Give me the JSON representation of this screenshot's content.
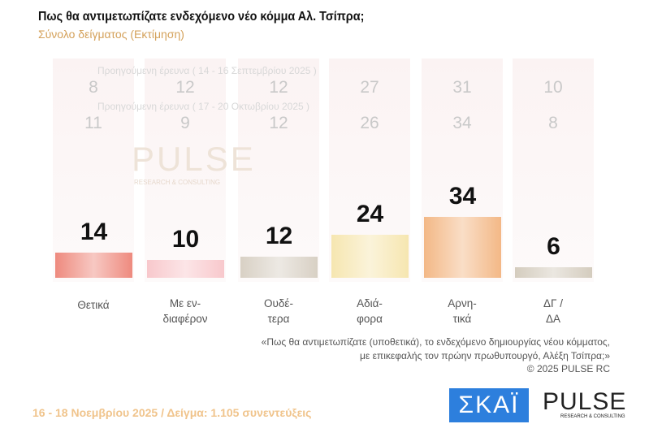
{
  "header": {
    "title": "Πως θα αντιμετωπίζατε ενδεχόμενο νέο κόμμα Αλ. Τσίπρα;",
    "subtitle": "Σύνολο δείγματος   (Εκτίμηση)"
  },
  "previous": [
    {
      "label": "Προηγούμενη έρευνα ( 14 - 16 Σεπτεμβρίου 2025 )",
      "values": [
        8,
        12,
        12,
        27,
        31,
        10
      ]
    },
    {
      "label": "Προηγούμενη έρευνα ( 17 - 20 Οκτωβρίου 2025 )",
      "values": [
        11,
        9,
        12,
        26,
        34,
        8
      ]
    }
  ],
  "chart_data": {
    "type": "bar",
    "categories": [
      "Θετικά",
      "Με εν-διαφέρον",
      "Ουδέ-τερα",
      "Αδιά-φορα",
      "Αρνη-τικά",
      "ΔΓ / ΔΑ"
    ],
    "category_lines": [
      [
        "Θετικά"
      ],
      [
        "Με εν-",
        "διαφέρον"
      ],
      [
        "Ουδέ-",
        "τερα"
      ],
      [
        "Αδιά-",
        "φορα"
      ],
      [
        "Αρνη-",
        "τικά"
      ],
      [
        "ΔΓ /",
        "ΔΑ"
      ]
    ],
    "values": [
      14,
      10,
      12,
      24,
      34,
      6
    ],
    "colors": [
      "#ee8a7e",
      "#f8c8cc",
      "#d8d0c4",
      "#f6e6b0",
      "#f3b886",
      "#d4ccbe"
    ],
    "ylim": [
      0,
      40
    ]
  },
  "watermark": {
    "brand": "PULSE",
    "sub": "RESEARCH & CONSULTING"
  },
  "note": {
    "line1": "«Πως θα αντιμετωπίζατε (υποθετικά), το ενδεχόμενο δημιουργίας νέου κόμματος,",
    "line2": "με επικεφαλής τον πρώην πρωθυπουργό, Αλέξη Τσίπρα;»",
    "copyright": "©  2025  PULSE RC"
  },
  "footer": {
    "text": "16 - 18 Νοεμβρίου 2025  /  Δείγμα:  1.105 συνεντεύξεις"
  },
  "logos": {
    "skai": "ΣΚΑΪ",
    "pulse": "PULSE",
    "pulse_sub": "RESEARCH & CONSULTING"
  }
}
